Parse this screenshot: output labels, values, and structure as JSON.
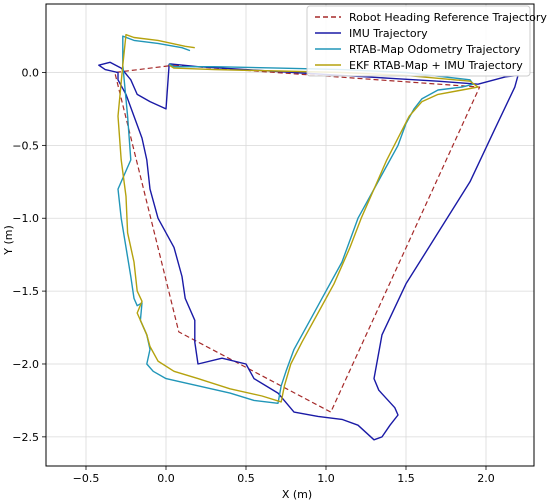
{
  "chart_data": {
    "type": "line",
    "title": "",
    "xlabel": "X (m)",
    "ylabel": "Y (m)",
    "xlim": [
      -0.75,
      2.3
    ],
    "ylim": [
      -2.7,
      0.47
    ],
    "xticks": [
      -0.5,
      0.0,
      0.5,
      1.0,
      1.5,
      2.0
    ],
    "xtick_labels": [
      "−0.5",
      "0.0",
      "0.5",
      "1.0",
      "1.5",
      "2.0"
    ],
    "yticks": [
      0.0,
      -0.5,
      -1.0,
      -1.5,
      -2.0,
      -2.5
    ],
    "ytick_labels": [
      "0.0",
      "−0.5",
      "−1.0",
      "−1.5",
      "−2.0",
      "−2.5"
    ],
    "grid": true,
    "legend_position": "top-right",
    "series": [
      {
        "name": "Robot Heading Reference Trajectory",
        "color": "#a52a2a",
        "style": "dashed",
        "x": [
          0.05,
          1.96,
          1.03,
          0.08,
          -0.32,
          0.05
        ],
        "y": [
          0.05,
          -0.1,
          -2.33,
          -1.78,
          0.0,
          0.05
        ]
      },
      {
        "name": "IMU Trajectory",
        "color": "#1a1aa6",
        "style": "solid",
        "x": [
          0.02,
          0.2,
          0.5,
          0.8,
          1.1,
          1.4,
          1.7,
          1.95,
          2.12,
          2.2,
          2.18,
          2.05,
          1.9,
          1.7,
          1.5,
          1.35,
          1.3,
          1.33,
          1.43,
          1.45,
          1.4,
          1.35,
          1.3,
          1.2,
          1.1,
          0.95,
          0.8,
          0.7,
          0.55,
          0.5,
          0.35,
          0.2,
          0.18,
          0.18,
          0.12,
          0.1,
          0.05,
          -0.05,
          -0.1,
          -0.12,
          -0.15,
          -0.2,
          -0.25,
          -0.3,
          -0.3,
          -0.38,
          -0.42,
          -0.35,
          -0.28,
          -0.22,
          -0.2,
          -0.18,
          -0.1,
          0.0,
          0.02
        ],
        "y": [
          0.06,
          0.04,
          0.02,
          0.0,
          -0.02,
          -0.04,
          -0.06,
          -0.08,
          -0.03,
          -0.02,
          -0.1,
          -0.4,
          -0.75,
          -1.1,
          -1.45,
          -1.8,
          -2.1,
          -2.18,
          -2.3,
          -2.35,
          -2.42,
          -2.5,
          -2.52,
          -2.42,
          -2.38,
          -2.36,
          -2.33,
          -2.2,
          -2.1,
          -2.0,
          -1.96,
          -2.0,
          -1.85,
          -1.7,
          -1.55,
          -1.4,
          -1.2,
          -1.0,
          -0.8,
          -0.6,
          -0.45,
          -0.3,
          -0.15,
          -0.05,
          0.0,
          0.02,
          0.05,
          0.07,
          0.03,
          -0.05,
          -0.1,
          -0.15,
          -0.2,
          -0.25,
          0.06
        ]
      },
      {
        "name": "RTAB-Map Odometry Trajectory",
        "color": "#2196b8",
        "style": "solid",
        "x": [
          0.15,
          0.1,
          -0.05,
          -0.2,
          -0.27,
          -0.27,
          -0.24,
          -0.22,
          -0.3,
          -0.28,
          -0.25,
          -0.22,
          -0.2,
          -0.18,
          -0.15,
          -0.16,
          -0.12,
          -0.1,
          -0.12,
          -0.08,
          0.0,
          0.2,
          0.4,
          0.55,
          0.7,
          0.72,
          0.75,
          0.8,
          0.9,
          1.0,
          1.1,
          1.2,
          1.25,
          1.35,
          1.45,
          1.5,
          1.55,
          1.6,
          1.7,
          1.85,
          1.92,
          1.9,
          1.5,
          1.1,
          0.7,
          0.3,
          0.05,
          0.02
        ],
        "y": [
          0.15,
          0.17,
          0.2,
          0.22,
          0.25,
          0.05,
          -0.3,
          -0.6,
          -0.8,
          -1.0,
          -1.2,
          -1.4,
          -1.55,
          -1.6,
          -1.58,
          -1.7,
          -1.8,
          -1.9,
          -2.0,
          -2.05,
          -2.1,
          -2.15,
          -2.2,
          -2.25,
          -2.27,
          -2.15,
          -2.05,
          -1.9,
          -1.7,
          -1.5,
          -1.3,
          -1.0,
          -0.9,
          -0.7,
          -0.5,
          -0.35,
          -0.25,
          -0.18,
          -0.12,
          -0.1,
          -0.08,
          -0.05,
          0.0,
          0.02,
          0.03,
          0.04,
          0.04,
          0.06
        ]
      },
      {
        "name": "EKF RTAB-Map + IMU Trajectory",
        "color": "#b5a20e",
        "style": "solid",
        "x": [
          0.18,
          0.12,
          -0.05,
          -0.2,
          -0.25,
          -0.27,
          -0.3,
          -0.28,
          -0.25,
          -0.24,
          -0.2,
          -0.18,
          -0.15,
          -0.18,
          -0.12,
          -0.1,
          -0.05,
          0.05,
          0.2,
          0.4,
          0.6,
          0.72,
          0.74,
          0.78,
          0.85,
          0.95,
          1.05,
          1.15,
          1.22,
          1.3,
          1.38,
          1.45,
          1.52,
          1.6,
          1.7,
          1.85,
          1.95,
          1.9,
          1.5,
          1.1,
          0.7,
          0.3,
          0.05,
          0.02
        ],
        "y": [
          0.17,
          0.18,
          0.22,
          0.24,
          0.26,
          0.05,
          -0.3,
          -0.6,
          -0.85,
          -1.1,
          -1.3,
          -1.5,
          -1.57,
          -1.65,
          -1.8,
          -1.88,
          -1.98,
          -2.05,
          -2.1,
          -2.17,
          -2.22,
          -2.26,
          -2.15,
          -2.0,
          -1.85,
          -1.65,
          -1.45,
          -1.2,
          -1.0,
          -0.8,
          -0.6,
          -0.45,
          -0.3,
          -0.2,
          -0.15,
          -0.12,
          -0.1,
          -0.06,
          -0.02,
          0.0,
          0.01,
          0.02,
          0.03,
          0.05
        ]
      }
    ]
  }
}
